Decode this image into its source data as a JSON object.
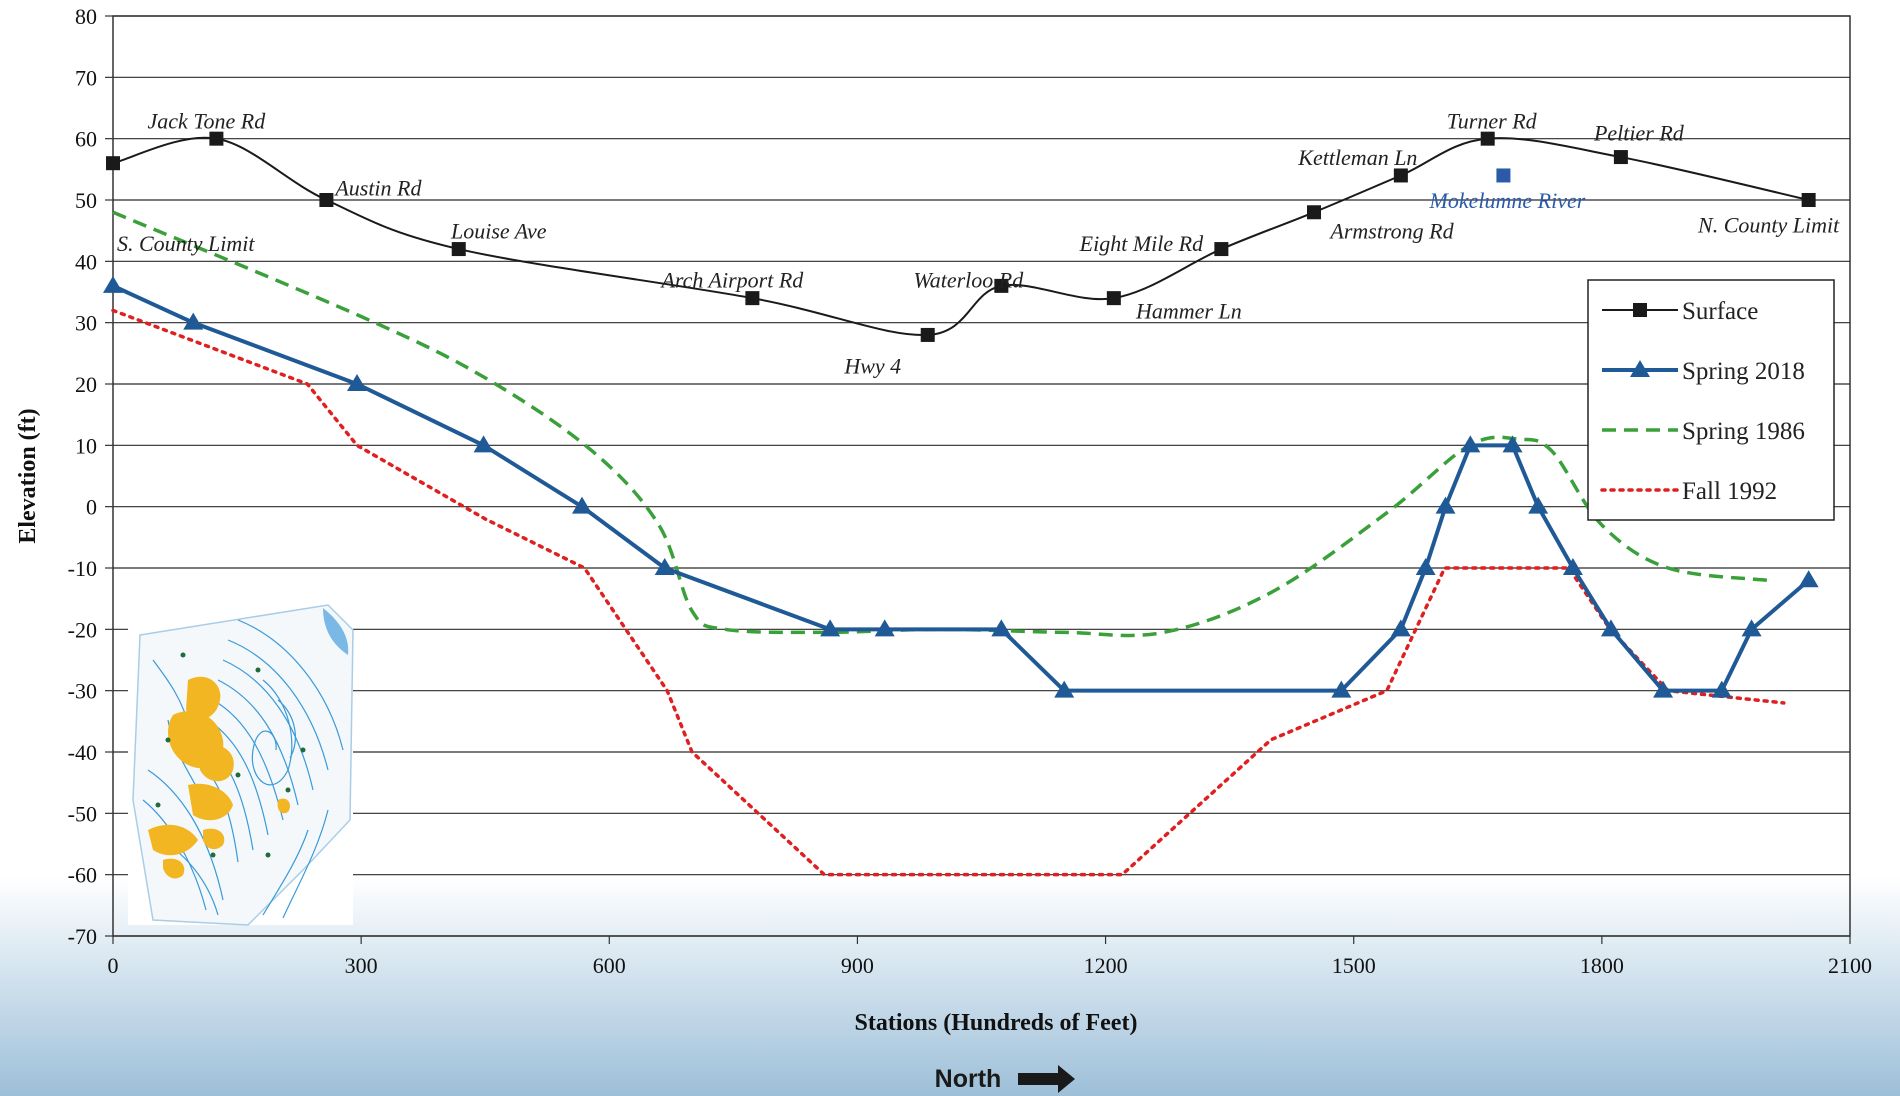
{
  "chart_data": {
    "type": "line",
    "title": "",
    "xlabel": "Stations (Hundreds of Feet)",
    "ylabel": "Elevation (ft)",
    "xlim": [
      0,
      2100
    ],
    "ylim": [
      -70,
      80
    ],
    "xticks": [
      0,
      300,
      600,
      900,
      1200,
      1500,
      1800,
      2100
    ],
    "yticks": [
      80,
      70,
      60,
      50,
      40,
      30,
      20,
      10,
      0,
      -10,
      -20,
      -30,
      -40,
      -50,
      -60,
      -70
    ],
    "grid": "horizontal",
    "legend_position": "right",
    "series": [
      {
        "name": "Surface",
        "style": "solid-square-markers",
        "color": "#1a1a1a",
        "x": [
          0,
          125,
          258,
          418,
          773,
          985,
          1074,
          1210,
          1340,
          1452,
          1557,
          1662,
          1823,
          2050
        ],
        "y": [
          56,
          60,
          50,
          42,
          34,
          28,
          36,
          34,
          42,
          48,
          54,
          60,
          57,
          50
        ]
      },
      {
        "name": "Spring 2018",
        "style": "solid-triangle-markers",
        "color": "#1f5a96",
        "x": [
          0,
          97,
          295,
          448,
          567,
          667,
          867,
          933,
          1074,
          1150,
          1485,
          1557,
          1587,
          1611,
          1641,
          1692,
          1723,
          1765,
          1811,
          1874,
          1945,
          1981,
          2050
        ],
        "y": [
          36,
          30,
          20,
          10,
          0,
          -10,
          -20,
          -20,
          -20,
          -30,
          -30,
          -20,
          -10,
          0,
          10,
          10,
          0,
          -10,
          -20,
          -30,
          -30,
          -20,
          -12
        ]
      },
      {
        "name": "Spring 1986",
        "style": "dashed",
        "color": "#3aa03a",
        "x": [
          0,
          300,
          450,
          580,
          660,
          700,
          740,
          860,
          1000,
          1150,
          1270,
          1400,
          1540,
          1640,
          1700,
          1740,
          1800,
          1880,
          2000
        ],
        "y": [
          48,
          31,
          21,
          9,
          -3,
          -17,
          -20,
          -20.5,
          -20,
          -20.5,
          -20.5,
          -14,
          -1,
          10,
          11,
          9,
          -3,
          -10,
          -12
        ]
      },
      {
        "name": "Fall 1992",
        "style": "dotted",
        "color": "#e02020",
        "x": [
          0,
          235,
          295,
          450,
          570,
          670,
          700,
          860,
          1220,
          1400,
          1540,
          1610,
          1670,
          1760,
          1810,
          1880,
          2020
        ],
        "y": [
          32,
          20,
          10,
          -2,
          -10,
          -30,
          -40,
          -60,
          -60,
          -38,
          -30,
          -10,
          -10,
          -10,
          -20,
          -30,
          -32
        ]
      }
    ],
    "annotations": [
      {
        "text": "S. County Limit",
        "x": 0,
        "y": 43
      },
      {
        "text": "Jack Tone Rd",
        "x": 125,
        "y": 63
      },
      {
        "text": "Austin Rd",
        "x": 258,
        "y": 52
      },
      {
        "text": "Louise Ave",
        "x": 418,
        "y": 45
      },
      {
        "text": "Arch Airport Rd",
        "x": 773,
        "y": 37
      },
      {
        "text": "Hwy 4",
        "x": 985,
        "y": 23
      },
      {
        "text": "Waterloo Rd",
        "x": 1074,
        "y": 37
      },
      {
        "text": "Hammer Ln",
        "x": 1210,
        "y": 32
      },
      {
        "text": "Eight Mile Rd",
        "x": 1340,
        "y": 43
      },
      {
        "text": "Armstrong Rd",
        "x": 1452,
        "y": 45
      },
      {
        "text": "Kettleman Ln",
        "x": 1557,
        "y": 57
      },
      {
        "text": "Turner Rd",
        "x": 1662,
        "y": 63
      },
      {
        "text": "Mokelumne River",
        "x": 1681,
        "y": 50,
        "marker_y": 54,
        "color": "#2a5aa8"
      },
      {
        "text": "Peltier Rd",
        "x": 1823,
        "y": 61
      },
      {
        "text": "N. County Limit",
        "x": 2050,
        "y": 46
      }
    ]
  },
  "footer": {
    "direction_label": "North",
    "arrow_icon": "right-arrow-icon"
  },
  "inset_map": {
    "icon": "groundwater-contour-map-icon",
    "colors": {
      "contour": "#3a9ad9",
      "urban": "#f2b623",
      "wells": "#1f6b3a"
    }
  }
}
